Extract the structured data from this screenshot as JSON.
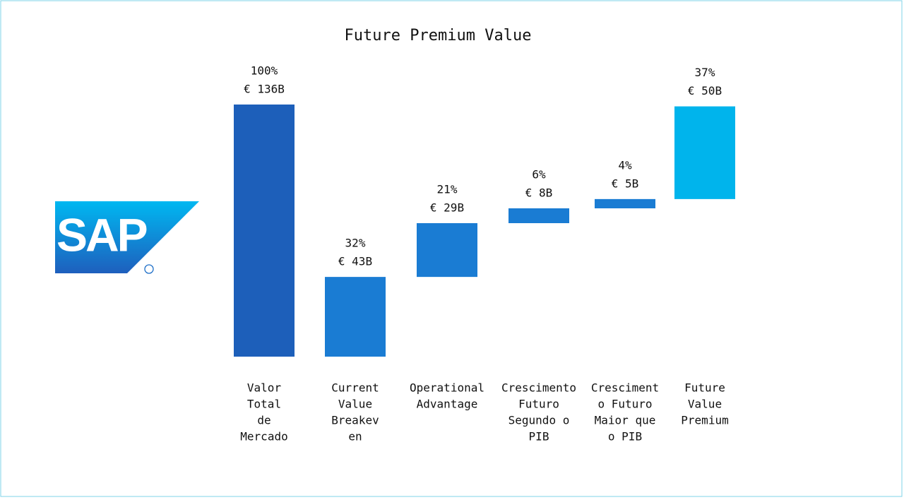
{
  "chart_data": {
    "type": "waterfall",
    "title": "Future Premium Value",
    "logo": "SAP",
    "categories": [
      [
        "Valor",
        "Total",
        "de",
        "Mercado"
      ],
      [
        "Current",
        "Value",
        "Breakev",
        "en"
      ],
      [
        "Operational",
        "Advantage"
      ],
      [
        "Crescimento",
        "Futuro",
        "Segundo o",
        "PIB"
      ],
      [
        "Cresciment",
        "o Futuro",
        "Maior que",
        "o PIB"
      ],
      [
        "Future",
        "Value",
        "Premium"
      ]
    ],
    "values": [
      136,
      43,
      29,
      8,
      5,
      50
    ],
    "value_labels": [
      "€ 136B",
      "€ 43B",
      "€ 29B",
      "€ 8B",
      "€ 5B",
      "€ 50B"
    ],
    "percent_labels": [
      "100%",
      "32%",
      "21%",
      "6%",
      "4%",
      "37%"
    ],
    "colors": [
      "#1d5fba",
      "#1a7cd3",
      "#1a7cd3",
      "#1a7cd3",
      "#1a7cd3",
      "#00b4ec"
    ]
  }
}
